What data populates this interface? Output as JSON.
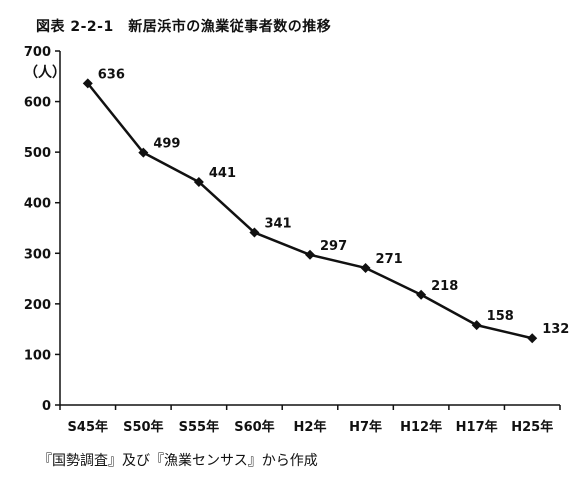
{
  "chart_data": {
    "type": "line",
    "title": "図表 2-2-1　新居浜市の漁業従事者数の推移",
    "unit_label": "（人）",
    "source_note": "『国勢調査』及び『漁業センサス』から作成",
    "categories": [
      "S45年",
      "S50年",
      "S55年",
      "S60年",
      "H2年",
      "H7年",
      "H12年",
      "H17年",
      "H25年"
    ],
    "series": [
      {
        "values": [
          636,
          499,
          441,
          341,
          297,
          271,
          218,
          158,
          132
        ]
      }
    ],
    "data_labels": [
      "636",
      "499",
      "441",
      "341",
      "297",
      "271",
      "218",
      "158",
      "132"
    ],
    "y_ticks": [
      0,
      100,
      200,
      300,
      400,
      500,
      600,
      700
    ],
    "ylim": [
      0,
      700
    ],
    "grid": false,
    "legend": "none",
    "line_color": "#111111",
    "marker": "diamond"
  }
}
